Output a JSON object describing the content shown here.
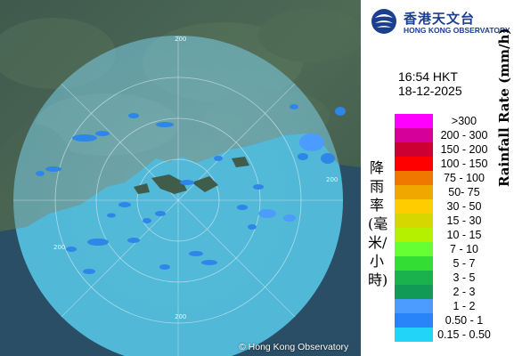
{
  "header": {
    "logo_chinese": "香港天文台",
    "logo_english": "HONG KONG OBSERVATORY"
  },
  "timestamp": {
    "time": "16:54 HKT",
    "date": "18-12-2025"
  },
  "legend": {
    "title_chinese": "降雨率(毫米/小時)",
    "title_english": "Rainfall Rate (mm/h)",
    "items": [
      {
        "label": ">300",
        "color": "#ff00ff"
      },
      {
        "label": "200 - 300",
        "color": "#d40099"
      },
      {
        "label": "150 - 200",
        "color": "#cc0033"
      },
      {
        "label": "100 - 150",
        "color": "#ff0000"
      },
      {
        "label": "75 - 100",
        "color": "#f07800"
      },
      {
        "label": "50- 75",
        "color": "#f0a800"
      },
      {
        "label": "30 - 50",
        "color": "#ffcc00"
      },
      {
        "label": "15 - 30",
        "color": "#d7d700"
      },
      {
        "label": "10 - 15",
        "color": "#b4f000"
      },
      {
        "label": "7 - 10",
        "color": "#66ff33"
      },
      {
        "label": "5 - 7",
        "color": "#33dd33"
      },
      {
        "label": "3 - 5",
        "color": "#19b24c"
      },
      {
        "label": "2 - 3",
        "color": "#119956"
      },
      {
        "label": "1 - 2",
        "color": "#4c9cff"
      },
      {
        "label": "0.50 - 1",
        "color": "#2884f8"
      },
      {
        "label": "0.15 - 0.50",
        "color": "#22d4f8"
      }
    ]
  },
  "map": {
    "range_labels": [
      "200",
      "200",
      "200",
      "200"
    ],
    "copyright": "© Hong Kong Observatory"
  }
}
